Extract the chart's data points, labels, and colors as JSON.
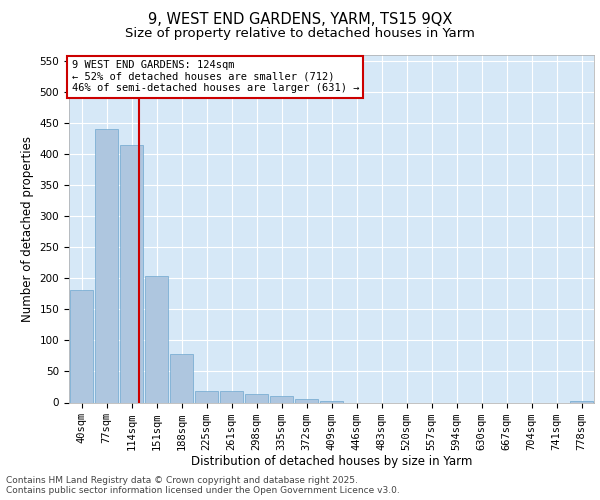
{
  "title_line1": "9, WEST END GARDENS, YARM, TS15 9QX",
  "title_line2": "Size of property relative to detached houses in Yarm",
  "xlabel": "Distribution of detached houses by size in Yarm",
  "ylabel": "Number of detached properties",
  "categories": [
    "40sqm",
    "77sqm",
    "114sqm",
    "151sqm",
    "188sqm",
    "225sqm",
    "261sqm",
    "298sqm",
    "335sqm",
    "372sqm",
    "409sqm",
    "446sqm",
    "483sqm",
    "520sqm",
    "557sqm",
    "594sqm",
    "630sqm",
    "667sqm",
    "704sqm",
    "741sqm",
    "778sqm"
  ],
  "values": [
    181,
    440,
    415,
    204,
    78,
    19,
    18,
    14,
    10,
    5,
    3,
    0,
    0,
    0,
    0,
    0,
    0,
    0,
    0,
    0,
    3
  ],
  "bar_color": "#aec6df",
  "bar_edge_color": "#6fa8d0",
  "vline_x_index": 2.3,
  "vline_color": "#cc0000",
  "annotation_text": "9 WEST END GARDENS: 124sqm\n← 52% of detached houses are smaller (712)\n46% of semi-detached houses are larger (631) →",
  "annotation_box_color": "#ffffff",
  "annotation_box_edge": "#cc0000",
  "ylim": [
    0,
    560
  ],
  "yticks": [
    0,
    50,
    100,
    150,
    200,
    250,
    300,
    350,
    400,
    450,
    500,
    550
  ],
  "bg_color": "#d6e8f7",
  "footer_text": "Contains HM Land Registry data © Crown copyright and database right 2025.\nContains public sector information licensed under the Open Government Licence v3.0.",
  "title_fontsize": 10.5,
  "subtitle_fontsize": 9.5,
  "axis_label_fontsize": 8.5,
  "tick_fontsize": 7.5,
  "annotation_fontsize": 7.5,
  "footer_fontsize": 6.5
}
